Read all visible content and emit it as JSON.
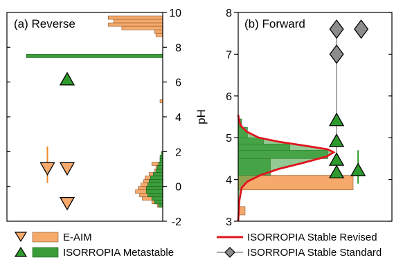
{
  "colors": {
    "eaim_fill": "#f5a96a",
    "eaim_stroke": "#8a5a33",
    "eaim_marker": "#f5a96a",
    "eaim_errbar": "#f08a2a",
    "meta_fill": "#3a9d3a",
    "meta_stroke": "#1e5a1e",
    "meta_marker": "#2e9a2e",
    "meta_errbar": "#2e9a2e",
    "revised_line": "#e0141e",
    "standard_marker": "#8c8c8c",
    "standard_line": "#555555"
  },
  "y_axis_label": "pH",
  "legend": {
    "eaim": "E-AIM",
    "metastable": "ISORROPIA Metastable",
    "stable_revised": "ISORROPIA Stable Revised",
    "stable_standard": "ISORROPIA Stable Standard"
  },
  "chart_data": [
    {
      "type": "bar",
      "panel": "a",
      "title": "(a) Reverse",
      "ylabel": "pH",
      "ylim": [
        -2,
        10
      ],
      "y_ticks": [
        -2,
        0,
        2,
        4,
        6,
        8,
        10
      ],
      "histogram_bin_width": 0.2,
      "histograms": [
        {
          "name": "E-AIM",
          "bins": [
            {
              "center": 9.7,
              "value": 0.4
            },
            {
              "center": 9.5,
              "value": 0.36
            },
            {
              "center": 9.3,
              "value": 0.4
            },
            {
              "center": 9.1,
              "value": 0.3
            },
            {
              "center": 8.9,
              "value": 0.06
            },
            {
              "center": 8.7,
              "value": 0.05
            },
            {
              "center": 4.9,
              "value": 0.02
            },
            {
              "center": 1.5,
              "value": 0.02
            },
            {
              "center": 1.3,
              "value": 0.08
            },
            {
              "center": 1.1,
              "value": 0.05
            },
            {
              "center": 0.9,
              "value": 0.06
            },
            {
              "center": 0.7,
              "value": 0.1
            },
            {
              "center": 0.5,
              "value": 0.13
            },
            {
              "center": 0.3,
              "value": 0.14
            },
            {
              "center": 0.1,
              "value": 0.16
            },
            {
              "center": -0.1,
              "value": 0.18
            },
            {
              "center": -0.3,
              "value": 0.2
            },
            {
              "center": -0.5,
              "value": 0.17
            },
            {
              "center": -0.7,
              "value": 0.15
            },
            {
              "center": -0.9,
              "value": 0.08
            },
            {
              "center": -1.1,
              "value": 0.04
            }
          ]
        },
        {
          "name": "ISORROPIA Metastable",
          "bins": [
            {
              "center": 7.5,
              "value": 1.0
            },
            {
              "center": 1.9,
              "value": 0.01
            },
            {
              "center": 1.7,
              "value": 0.02
            },
            {
              "center": 1.5,
              "value": 0.02
            },
            {
              "center": 1.3,
              "value": 0.03
            },
            {
              "center": 1.1,
              "value": 0.04
            },
            {
              "center": 0.9,
              "value": 0.05
            },
            {
              "center": 0.7,
              "value": 0.07
            },
            {
              "center": 0.5,
              "value": 0.09
            },
            {
              "center": 0.3,
              "value": 0.1
            },
            {
              "center": 0.1,
              "value": 0.11
            },
            {
              "center": -0.1,
              "value": 0.12
            },
            {
              "center": -0.3,
              "value": 0.12
            },
            {
              "center": -0.5,
              "value": 0.11
            },
            {
              "center": -0.7,
              "value": 0.08
            },
            {
              "center": -0.9,
              "value": 0.06
            },
            {
              "center": -1.1,
              "value": 0.03
            }
          ]
        }
      ],
      "markers": [
        {
          "series": "ISORROPIA Metastable",
          "shape": "triangle-up",
          "x": 0.58,
          "y": 6.1
        },
        {
          "series": "E-AIM",
          "shape": "triangle-down",
          "x": 0.39,
          "y": 1.1,
          "err_low": 0.2,
          "err_high": 2.3
        },
        {
          "series": "E-AIM",
          "shape": "triangle-down",
          "x": 0.58,
          "y": 1.1
        },
        {
          "series": "E-AIM",
          "shape": "triangle-down",
          "x": 0.58,
          "y": -0.9
        }
      ]
    },
    {
      "type": "bar",
      "panel": "b",
      "title": "(b) Forward",
      "ylabel": "pH",
      "ylim": [
        3,
        8
      ],
      "y_ticks": [
        3,
        4,
        5,
        6,
        7,
        8
      ],
      "histograms": [
        {
          "name": "E-AIM",
          "bins": [
            {
              "low": 3.15,
              "high": 3.35,
              "value": 0.06
            },
            {
              "low": 3.75,
              "high": 4.1,
              "value": 1.0
            }
          ]
        },
        {
          "name": "ISORROPIA Metastable",
          "bins": [
            {
              "low": 4.1,
              "high": 4.5,
              "value": 0.28
            },
            {
              "low": 4.5,
              "high": 4.7,
              "value": 0.78
            },
            {
              "low": 4.7,
              "high": 4.85,
              "value": 0.45
            },
            {
              "low": 4.85,
              "high": 5.0,
              "value": 0.22
            },
            {
              "low": 5.0,
              "high": 5.25,
              "value": 0.08
            },
            {
              "low": 5.25,
              "high": 5.45,
              "value": 0.03
            }
          ]
        }
      ],
      "curve": {
        "name": "ISORROPIA Stable Revised",
        "points": [
          {
            "y": 3.0,
            "value": 0.0
          },
          {
            "y": 3.5,
            "value": 0.01
          },
          {
            "y": 3.8,
            "value": 0.03
          },
          {
            "y": 3.95,
            "value": 0.08
          },
          {
            "y": 4.1,
            "value": 0.19
          },
          {
            "y": 4.25,
            "value": 0.35
          },
          {
            "y": 4.4,
            "value": 0.57
          },
          {
            "y": 4.55,
            "value": 0.77
          },
          {
            "y": 4.65,
            "value": 0.83
          },
          {
            "y": 4.72,
            "value": 0.78
          },
          {
            "y": 4.8,
            "value": 0.6
          },
          {
            "y": 4.9,
            "value": 0.36
          },
          {
            "y": 5.0,
            "value": 0.18
          },
          {
            "y": 5.15,
            "value": 0.07
          },
          {
            "y": 5.3,
            "value": 0.02
          },
          {
            "y": 5.45,
            "value": 0.005
          },
          {
            "y": 5.55,
            "value": 0.0
          }
        ]
      },
      "markers": [
        {
          "series": "ISORROPIA Stable Standard",
          "shape": "diamond",
          "x": 0.64,
          "y": 7.6
        },
        {
          "series": "ISORROPIA Stable Standard",
          "shape": "diamond",
          "x": 0.8,
          "y": 7.6
        },
        {
          "series": "ISORROPIA Stable Standard",
          "shape": "diamond",
          "x": 0.64,
          "y": 7.0
        },
        {
          "series": "ISORROPIA Metastable",
          "shape": "triangle-up",
          "x": 0.64,
          "y": 5.4
        },
        {
          "series": "ISORROPIA Metastable",
          "shape": "triangle-up",
          "x": 0.64,
          "y": 4.9
        },
        {
          "series": "ISORROPIA Metastable",
          "shape": "triangle-up",
          "x": 0.64,
          "y": 4.45
        },
        {
          "series": "ISORROPIA Metastable",
          "shape": "triangle-up",
          "x": 0.64,
          "y": 4.15
        },
        {
          "series": "ISORROPIA Metastable",
          "shape": "triangle-up",
          "x": 0.78,
          "y": 4.2,
          "err_low": 3.9,
          "err_high": 4.7
        }
      ],
      "guide_line": {
        "series": "ISORROPIA Stable Standard",
        "x": 0.64,
        "y_from": 4.15,
        "y_to": 7.6
      }
    }
  ]
}
